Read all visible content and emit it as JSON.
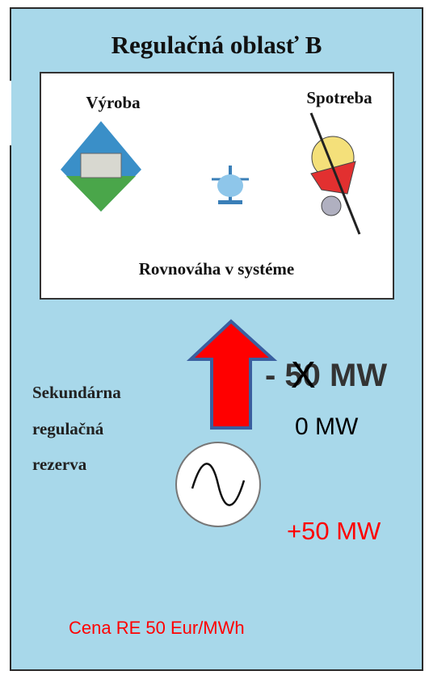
{
  "title": "Regulačná oblasť B",
  "panel": {
    "production": "Výroba",
    "consumption": "Spotreba",
    "balance": "Rovnováha v systéme"
  },
  "reserve": {
    "label": [
      "Sekundárna",
      "regulačná",
      "rezerva"
    ]
  },
  "flows": {
    "previous": "- 50 MW",
    "strike": "X",
    "current": "0 MW",
    "planned": "+50 MW"
  },
  "price": "Cena RE 50 Eur/MWh"
}
